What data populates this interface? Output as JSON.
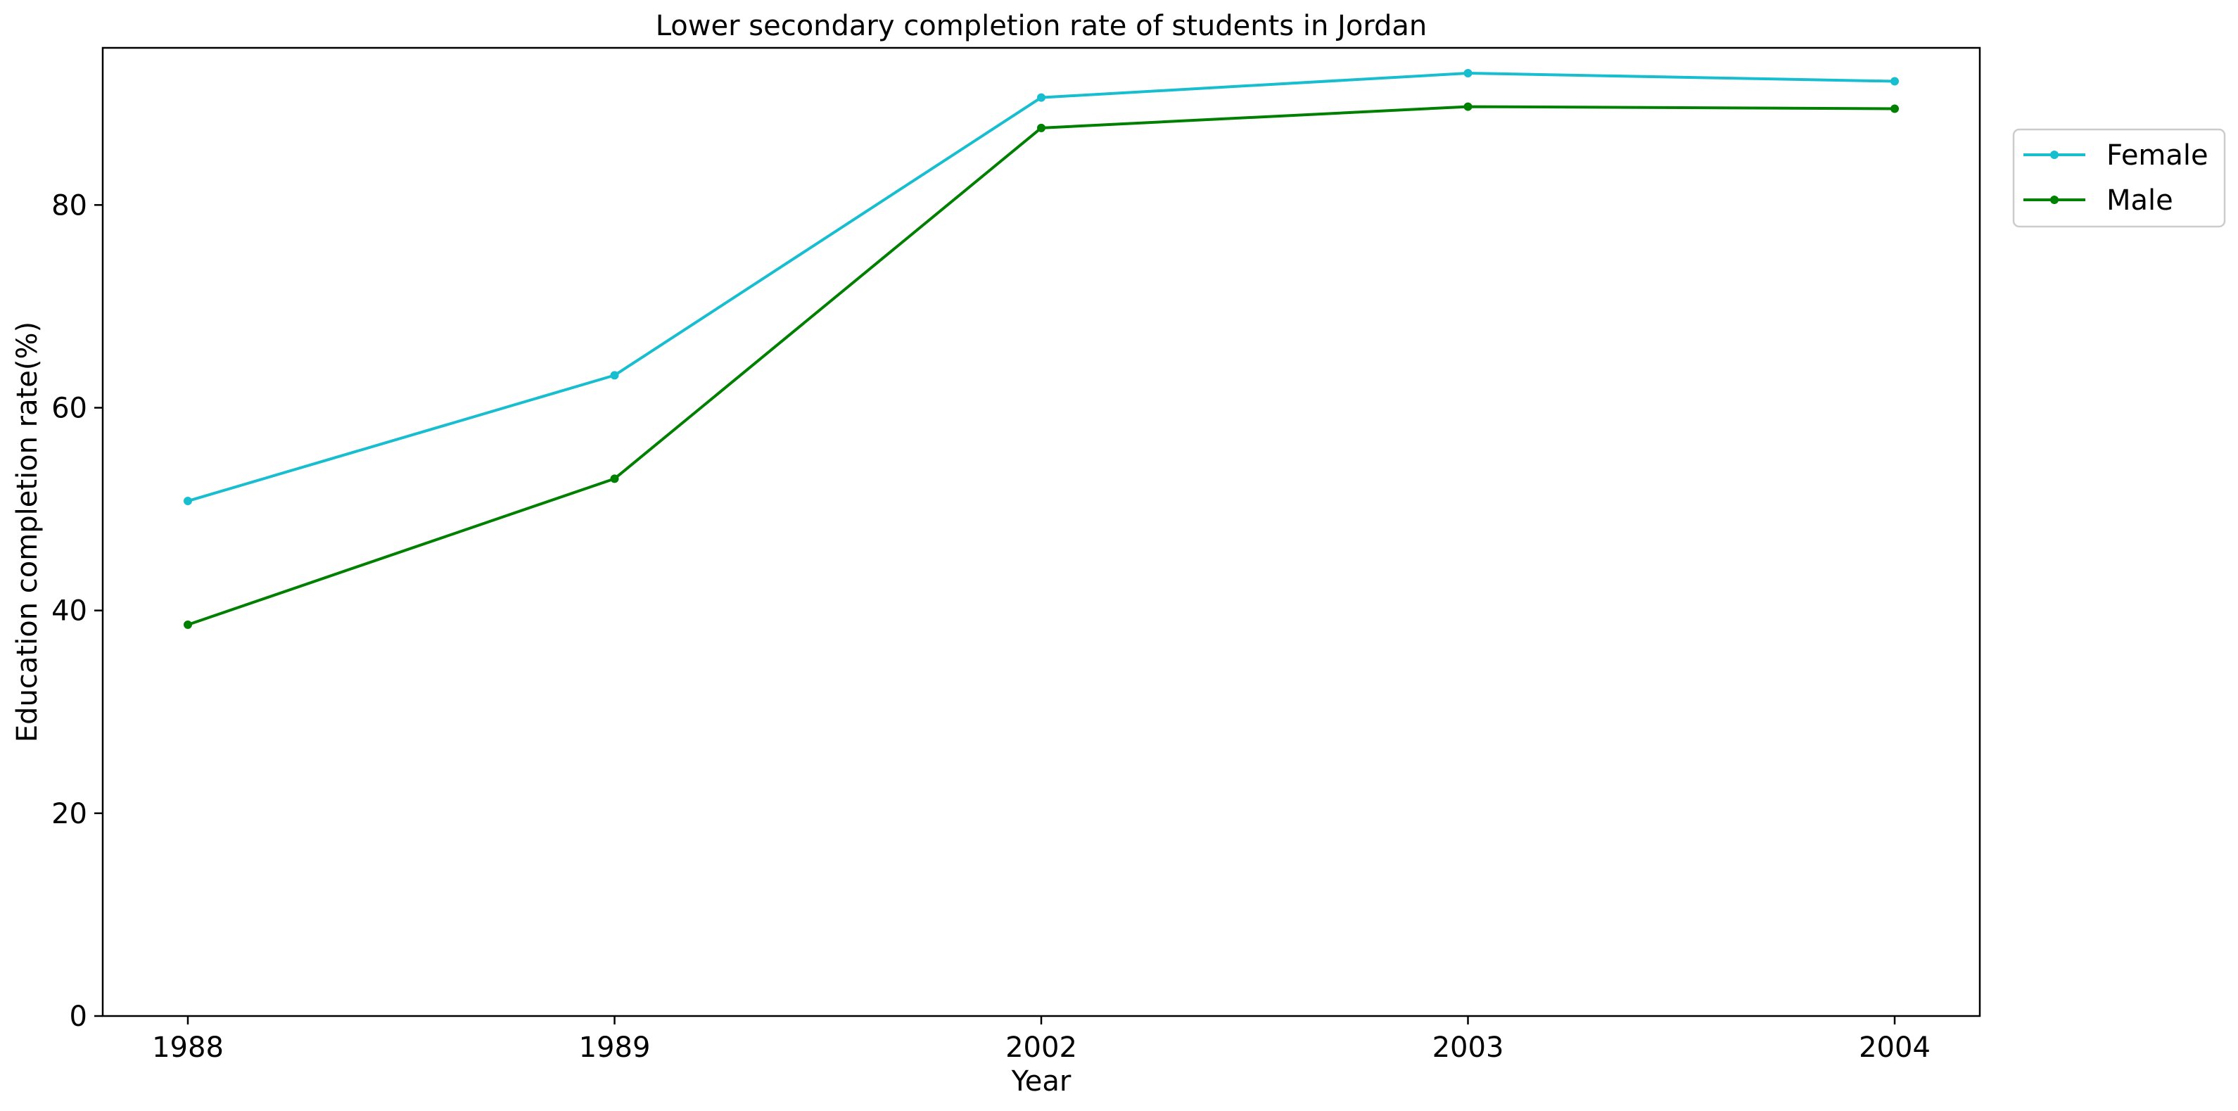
{
  "chart_data": {
    "type": "line",
    "title": "Lower secondary completion rate of students in Jordan",
    "xlabel": "Year",
    "ylabel": "Education completion rate(%)",
    "categories": [
      "1988",
      "1989",
      "2002",
      "2003",
      "2004"
    ],
    "ylim": [
      0,
      95.5
    ],
    "yticks": [
      0,
      20,
      40,
      60,
      80
    ],
    "grid": false,
    "legend_position": "top-right, outside plot",
    "series": [
      {
        "name": "Female",
        "color": "#17becf",
        "marker": "circle",
        "values": [
          50.8,
          63.2,
          90.6,
          93.0,
          92.2
        ]
      },
      {
        "name": "Male",
        "color": "#008000",
        "marker": "circle",
        "values": [
          38.6,
          53.0,
          87.6,
          89.7,
          89.5
        ]
      }
    ]
  }
}
